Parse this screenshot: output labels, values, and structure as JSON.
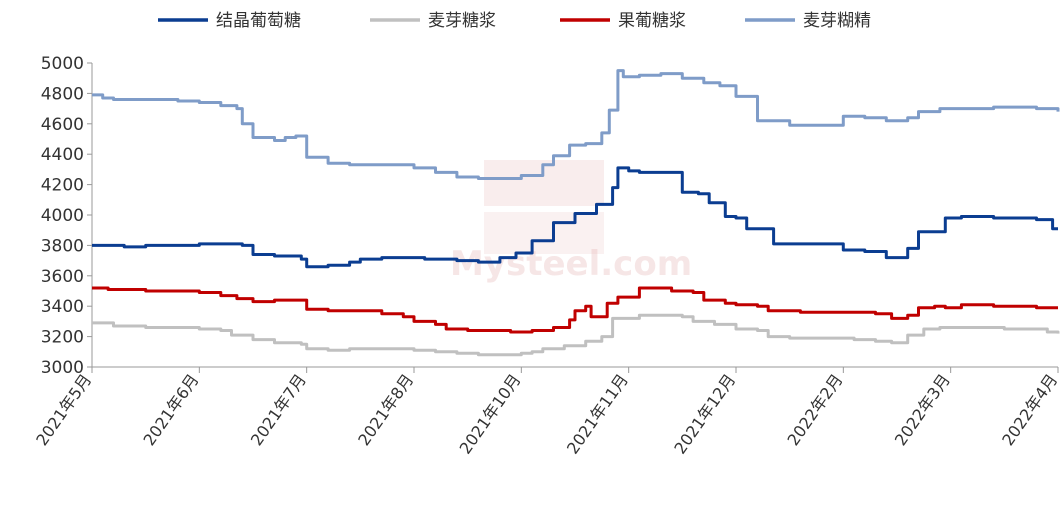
{
  "chart_data": {
    "type": "line",
    "title": "",
    "xlabel": "",
    "ylabel": "",
    "ylim": [
      3000,
      5000
    ],
    "yticks": [
      3000,
      3200,
      3400,
      3600,
      3800,
      4000,
      4200,
      4400,
      4600,
      4800,
      5000
    ],
    "x_tick_labels": [
      "2021年5月",
      "2021年6月",
      "2021年7月",
      "2021年8月",
      "2021年10月",
      "2021年11月",
      "2021年12月",
      "2022年2月",
      "2022年3月",
      "2022年4月"
    ],
    "grid": false,
    "legend_position": "top",
    "watermark": "Mysteel.com",
    "series": [
      {
        "name": "结晶葡萄糖",
        "color": "#0b3d91",
        "values": [
          [
            0,
            3800
          ],
          [
            0.3,
            3790
          ],
          [
            0.5,
            3800
          ],
          [
            1,
            3810
          ],
          [
            1.4,
            3800
          ],
          [
            1.5,
            3740
          ],
          [
            1.7,
            3730
          ],
          [
            1.95,
            3710
          ],
          [
            2.0,
            3660
          ],
          [
            2.2,
            3670
          ],
          [
            2.4,
            3690
          ],
          [
            2.5,
            3710
          ],
          [
            2.7,
            3720
          ],
          [
            2.9,
            3720
          ],
          [
            3.1,
            3710
          ],
          [
            3.4,
            3700
          ],
          [
            3.6,
            3690
          ],
          [
            3.8,
            3720
          ],
          [
            3.95,
            3750
          ],
          [
            4.1,
            3830
          ],
          [
            4.3,
            3950
          ],
          [
            4.5,
            4010
          ],
          [
            4.7,
            4070
          ],
          [
            4.85,
            4180
          ],
          [
            4.9,
            4310
          ],
          [
            5.0,
            4290
          ],
          [
            5.1,
            4280
          ],
          [
            5.3,
            4280
          ],
          [
            5.5,
            4150
          ],
          [
            5.65,
            4140
          ],
          [
            5.75,
            4080
          ],
          [
            5.9,
            3990
          ],
          [
            6.0,
            3980
          ],
          [
            6.1,
            3910
          ],
          [
            6.2,
            3910
          ],
          [
            6.35,
            3810
          ],
          [
            6.5,
            3810
          ],
          [
            6.9,
            3810
          ],
          [
            7.0,
            3770
          ],
          [
            7.2,
            3760
          ],
          [
            7.4,
            3720
          ],
          [
            7.6,
            3780
          ],
          [
            7.7,
            3890
          ],
          [
            7.85,
            3890
          ],
          [
            7.95,
            3980
          ],
          [
            8.1,
            3990
          ],
          [
            8.4,
            3980
          ],
          [
            8.8,
            3970
          ],
          [
            8.95,
            3910
          ],
          [
            9,
            3910
          ]
        ]
      },
      {
        "name": "麦芽糖浆",
        "color": "#c0c0c0",
        "values": [
          [
            0,
            3290
          ],
          [
            0.2,
            3270
          ],
          [
            0.5,
            3260
          ],
          [
            1,
            3250
          ],
          [
            1.2,
            3240
          ],
          [
            1.3,
            3210
          ],
          [
            1.5,
            3180
          ],
          [
            1.7,
            3160
          ],
          [
            1.95,
            3150
          ],
          [
            2.0,
            3120
          ],
          [
            2.2,
            3110
          ],
          [
            2.4,
            3120
          ],
          [
            2.6,
            3120
          ],
          [
            2.8,
            3120
          ],
          [
            3.0,
            3110
          ],
          [
            3.2,
            3100
          ],
          [
            3.4,
            3090
          ],
          [
            3.6,
            3080
          ],
          [
            3.8,
            3080
          ],
          [
            4.0,
            3090
          ],
          [
            4.1,
            3100
          ],
          [
            4.2,
            3120
          ],
          [
            4.4,
            3140
          ],
          [
            4.6,
            3170
          ],
          [
            4.75,
            3200
          ],
          [
            4.85,
            3320
          ],
          [
            5.0,
            3320
          ],
          [
            5.1,
            3340
          ],
          [
            5.3,
            3340
          ],
          [
            5.5,
            3330
          ],
          [
            5.6,
            3300
          ],
          [
            5.8,
            3280
          ],
          [
            6.0,
            3250
          ],
          [
            6.2,
            3240
          ],
          [
            6.3,
            3200
          ],
          [
            6.5,
            3190
          ],
          [
            6.9,
            3190
          ],
          [
            7.1,
            3180
          ],
          [
            7.3,
            3170
          ],
          [
            7.45,
            3160
          ],
          [
            7.6,
            3210
          ],
          [
            7.75,
            3250
          ],
          [
            7.9,
            3260
          ],
          [
            8.1,
            3260
          ],
          [
            8.5,
            3250
          ],
          [
            8.9,
            3230
          ],
          [
            9,
            3220
          ]
        ]
      },
      {
        "name": "果葡糖浆",
        "color": "#c00000",
        "values": [
          [
            0,
            3520
          ],
          [
            0.15,
            3510
          ],
          [
            0.5,
            3500
          ],
          [
            1,
            3490
          ],
          [
            1.2,
            3470
          ],
          [
            1.35,
            3450
          ],
          [
            1.5,
            3430
          ],
          [
            1.7,
            3440
          ],
          [
            1.9,
            3440
          ],
          [
            2.0,
            3380
          ],
          [
            2.2,
            3370
          ],
          [
            2.5,
            3370
          ],
          [
            2.7,
            3350
          ],
          [
            2.9,
            3330
          ],
          [
            3.0,
            3300
          ],
          [
            3.2,
            3280
          ],
          [
            3.3,
            3250
          ],
          [
            3.5,
            3240
          ],
          [
            3.7,
            3240
          ],
          [
            3.9,
            3230
          ],
          [
            4.1,
            3240
          ],
          [
            4.3,
            3260
          ],
          [
            4.45,
            3310
          ],
          [
            4.5,
            3370
          ],
          [
            4.6,
            3400
          ],
          [
            4.65,
            3330
          ],
          [
            4.75,
            3330
          ],
          [
            4.8,
            3420
          ],
          [
            4.9,
            3460
          ],
          [
            5.05,
            3460
          ],
          [
            5.1,
            3520
          ],
          [
            5.3,
            3520
          ],
          [
            5.4,
            3500
          ],
          [
            5.6,
            3490
          ],
          [
            5.7,
            3440
          ],
          [
            5.9,
            3420
          ],
          [
            6.0,
            3410
          ],
          [
            6.2,
            3400
          ],
          [
            6.3,
            3370
          ],
          [
            6.6,
            3360
          ],
          [
            6.9,
            3360
          ],
          [
            7.1,
            3360
          ],
          [
            7.3,
            3350
          ],
          [
            7.45,
            3320
          ],
          [
            7.6,
            3340
          ],
          [
            7.7,
            3390
          ],
          [
            7.85,
            3400
          ],
          [
            7.95,
            3390
          ],
          [
            8.1,
            3410
          ],
          [
            8.4,
            3400
          ],
          [
            8.8,
            3390
          ],
          [
            9,
            3390
          ]
        ]
      },
      {
        "name": "麦芽糊精",
        "color": "#7f9cc8",
        "values": [
          [
            0,
            4790
          ],
          [
            0.1,
            4770
          ],
          [
            0.2,
            4760
          ],
          [
            0.6,
            4760
          ],
          [
            0.8,
            4750
          ],
          [
            1.0,
            4740
          ],
          [
            1.2,
            4720
          ],
          [
            1.35,
            4700
          ],
          [
            1.4,
            4600
          ],
          [
            1.5,
            4510
          ],
          [
            1.7,
            4490
          ],
          [
            1.8,
            4510
          ],
          [
            1.9,
            4520
          ],
          [
            2.0,
            4380
          ],
          [
            2.2,
            4340
          ],
          [
            2.4,
            4330
          ],
          [
            2.7,
            4330
          ],
          [
            3.0,
            4310
          ],
          [
            3.2,
            4280
          ],
          [
            3.4,
            4250
          ],
          [
            3.6,
            4240
          ],
          [
            3.8,
            4240
          ],
          [
            4.0,
            4260
          ],
          [
            4.2,
            4330
          ],
          [
            4.3,
            4390
          ],
          [
            4.45,
            4460
          ],
          [
            4.6,
            4470
          ],
          [
            4.75,
            4540
          ],
          [
            4.82,
            4690
          ],
          [
            4.9,
            4950
          ],
          [
            4.95,
            4910
          ],
          [
            5.1,
            4920
          ],
          [
            5.3,
            4930
          ],
          [
            5.5,
            4900
          ],
          [
            5.7,
            4870
          ],
          [
            5.85,
            4850
          ],
          [
            6.0,
            4780
          ],
          [
            6.1,
            4780
          ],
          [
            6.2,
            4620
          ],
          [
            6.4,
            4620
          ],
          [
            6.5,
            4590
          ],
          [
            6.7,
            4590
          ],
          [
            6.9,
            4590
          ],
          [
            7.0,
            4650
          ],
          [
            7.2,
            4640
          ],
          [
            7.4,
            4620
          ],
          [
            7.6,
            4640
          ],
          [
            7.7,
            4680
          ],
          [
            7.9,
            4700
          ],
          [
            8.1,
            4700
          ],
          [
            8.4,
            4710
          ],
          [
            8.8,
            4700
          ],
          [
            9,
            4680
          ]
        ]
      }
    ]
  }
}
